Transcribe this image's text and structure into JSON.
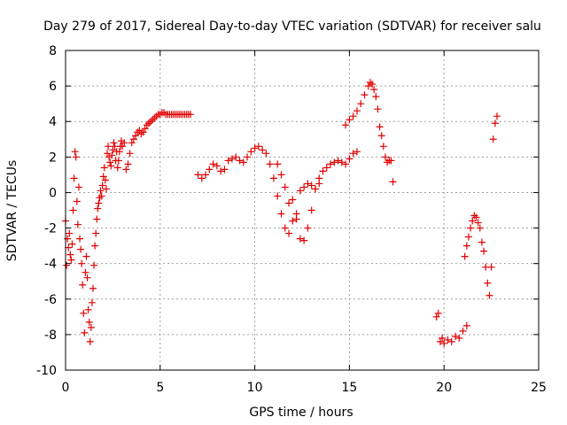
{
  "chart_data": {
    "type": "scatter",
    "title": "Day 279 of 2017, Sidereal Day-to-day VTEC variation (SDTVAR) for receiver salu",
    "xlabel": "GPS time / hours",
    "ylabel": "SDTVAR / TECUs",
    "xlim": [
      0,
      25
    ],
    "ylim": [
      -10,
      8
    ],
    "xticks": [
      0,
      5,
      10,
      15,
      20,
      25
    ],
    "yticks": [
      -10,
      -8,
      -6,
      -4,
      -2,
      0,
      2,
      4,
      6,
      8
    ],
    "grid": true,
    "marker": "plus",
    "color": "#e00000",
    "series": [
      {
        "x": [
          0.0,
          0.05,
          0.1,
          0.15,
          0.2,
          0.25,
          0.3,
          0.35,
          0.4,
          0.45,
          0.5,
          0.55,
          0.6,
          0.65,
          0.7,
          0.75,
          0.8,
          0.85,
          0.9,
          0.95,
          1.0,
          1.05,
          1.1,
          1.15,
          1.2,
          1.25,
          1.3,
          1.35,
          1.4,
          1.45,
          1.5,
          1.55,
          1.6,
          1.65,
          1.7,
          1.75,
          1.8,
          1.85,
          1.9,
          1.95,
          2.0,
          2.05,
          2.1,
          2.15,
          2.2,
          2.25,
          2.3,
          2.35,
          2.4,
          2.45,
          2.5,
          2.55,
          2.6,
          2.65,
          2.7,
          2.75,
          2.8,
          2.85,
          2.9,
          2.95,
          3.0,
          3.1,
          3.2,
          3.3,
          3.4,
          3.5,
          3.6,
          3.7,
          3.8,
          3.9,
          4.0,
          4.1,
          4.2,
          4.3,
          4.4,
          4.5,
          4.6,
          4.7,
          4.8,
          4.9,
          5.0,
          5.1,
          5.2,
          5.3,
          5.4,
          5.5,
          5.6,
          5.7,
          5.8,
          5.9,
          6.0,
          6.1,
          6.2,
          6.3,
          6.4,
          6.5,
          6.6
        ],
        "y": [
          -1.6,
          -4.1,
          -2.6,
          -3.1,
          -2.3,
          -3.5,
          -3.8,
          -2.9,
          -1.0,
          0.8,
          2.3,
          2.0,
          -0.5,
          -1.8,
          0.3,
          -2.6,
          -3.2,
          -4.0,
          -5.2,
          -6.8,
          -7.9,
          -4.5,
          -3.6,
          -4.8,
          -6.6,
          -7.3,
          -8.4,
          -7.6,
          -6.2,
          -5.4,
          -4.1,
          -3.0,
          -2.3,
          -1.5,
          -0.9,
          -0.6,
          -0.3,
          0.1,
          -0.2,
          0.4,
          0.9,
          1.4,
          0.7,
          0.2,
          2.2,
          2.6,
          2.0,
          1.7,
          1.5,
          2.1,
          2.4,
          2.8,
          2.6,
          1.8,
          2.3,
          1.4,
          1.8,
          2.3,
          2.6,
          2.9,
          2.6,
          2.8,
          1.3,
          1.6,
          2.2,
          2.8,
          3.0,
          3.2,
          3.4,
          3.5,
          3.3,
          3.4,
          3.6,
          3.8,
          3.9,
          4.0,
          4.1,
          4.2,
          4.3,
          4.4,
          4.4,
          4.5,
          4.5,
          4.4,
          4.4,
          4.4,
          4.4,
          4.4,
          4.4,
          4.4,
          4.4,
          4.4,
          4.4,
          4.4,
          4.4,
          4.4,
          4.4
        ]
      },
      {
        "x": [
          7.0,
          7.2,
          7.4,
          7.6,
          7.8,
          8.0,
          8.2,
          8.4,
          8.6,
          8.8,
          9.0,
          9.2,
          9.4,
          9.6,
          9.8,
          10.0,
          10.2,
          10.4,
          10.6,
          10.8,
          11.0,
          11.2,
          11.4,
          11.6,
          11.8,
          12.0,
          12.2,
          12.4,
          12.6,
          12.8,
          13.0,
          13.2,
          13.4,
          13.6,
          13.8,
          14.0,
          14.2,
          14.4,
          14.6,
          14.8,
          15.0,
          15.2,
          15.4
        ],
        "y": [
          1.0,
          0.8,
          1.0,
          1.3,
          1.6,
          1.5,
          1.2,
          1.3,
          1.8,
          1.9,
          2.0,
          1.8,
          1.7,
          2.0,
          2.3,
          2.5,
          2.6,
          2.4,
          2.2,
          1.6,
          0.8,
          -0.2,
          -1.2,
          -2.0,
          -2.3,
          -0.4,
          -1.5,
          -2.6,
          -2.7,
          -2.0,
          -1.0,
          0.2,
          0.8,
          1.2,
          1.4,
          1.6,
          1.7,
          1.8,
          1.7,
          1.6,
          1.9,
          2.2,
          2.3
        ]
      },
      {
        "x": [
          11.2,
          11.4,
          11.6,
          11.8,
          12.0,
          12.2,
          12.4,
          12.6,
          12.8,
          13.0,
          13.2,
          13.4
        ],
        "y": [
          1.6,
          1.0,
          0.3,
          -0.6,
          -1.6,
          -1.2,
          0.1,
          0.3,
          0.5,
          0.4,
          0.2,
          0.5
        ]
      },
      {
        "x": [
          14.8,
          15.0,
          15.2,
          15.4,
          15.6,
          15.8,
          16.0,
          16.1,
          16.2,
          16.3,
          16.4,
          16.5,
          16.6,
          16.7,
          16.8,
          16.9,
          17.0,
          17.1,
          17.2,
          17.3
        ],
        "y": [
          3.8,
          4.1,
          4.3,
          4.6,
          5.0,
          5.5,
          6.0,
          6.2,
          6.1,
          5.8,
          5.4,
          4.7,
          3.7,
          3.2,
          2.6,
          2.0,
          1.7,
          1.8,
          1.8,
          0.6
        ]
      },
      {
        "x": [
          19.6,
          19.7,
          19.8,
          19.9,
          20.0,
          20.2,
          20.4,
          20.6,
          20.8,
          21.0,
          21.2
        ],
        "y": [
          -7.0,
          -6.8,
          -8.4,
          -8.2,
          -8.5,
          -8.3,
          -8.4,
          -8.1,
          -8.2,
          -7.8,
          -7.5
        ]
      },
      {
        "x": [
          21.1,
          21.2,
          21.3,
          21.4,
          21.5,
          21.6,
          21.7,
          21.8,
          21.9,
          22.0,
          22.1,
          22.2,
          22.3,
          22.4,
          22.5,
          22.6,
          22.7,
          22.8
        ],
        "y": [
          -3.6,
          -3.0,
          -2.5,
          -2.0,
          -1.6,
          -1.3,
          -1.4,
          -1.7,
          -2.0,
          -2.8,
          -3.3,
          -4.2,
          -5.1,
          -5.8,
          -4.2,
          3.0,
          3.9,
          4.3
        ]
      }
    ]
  }
}
